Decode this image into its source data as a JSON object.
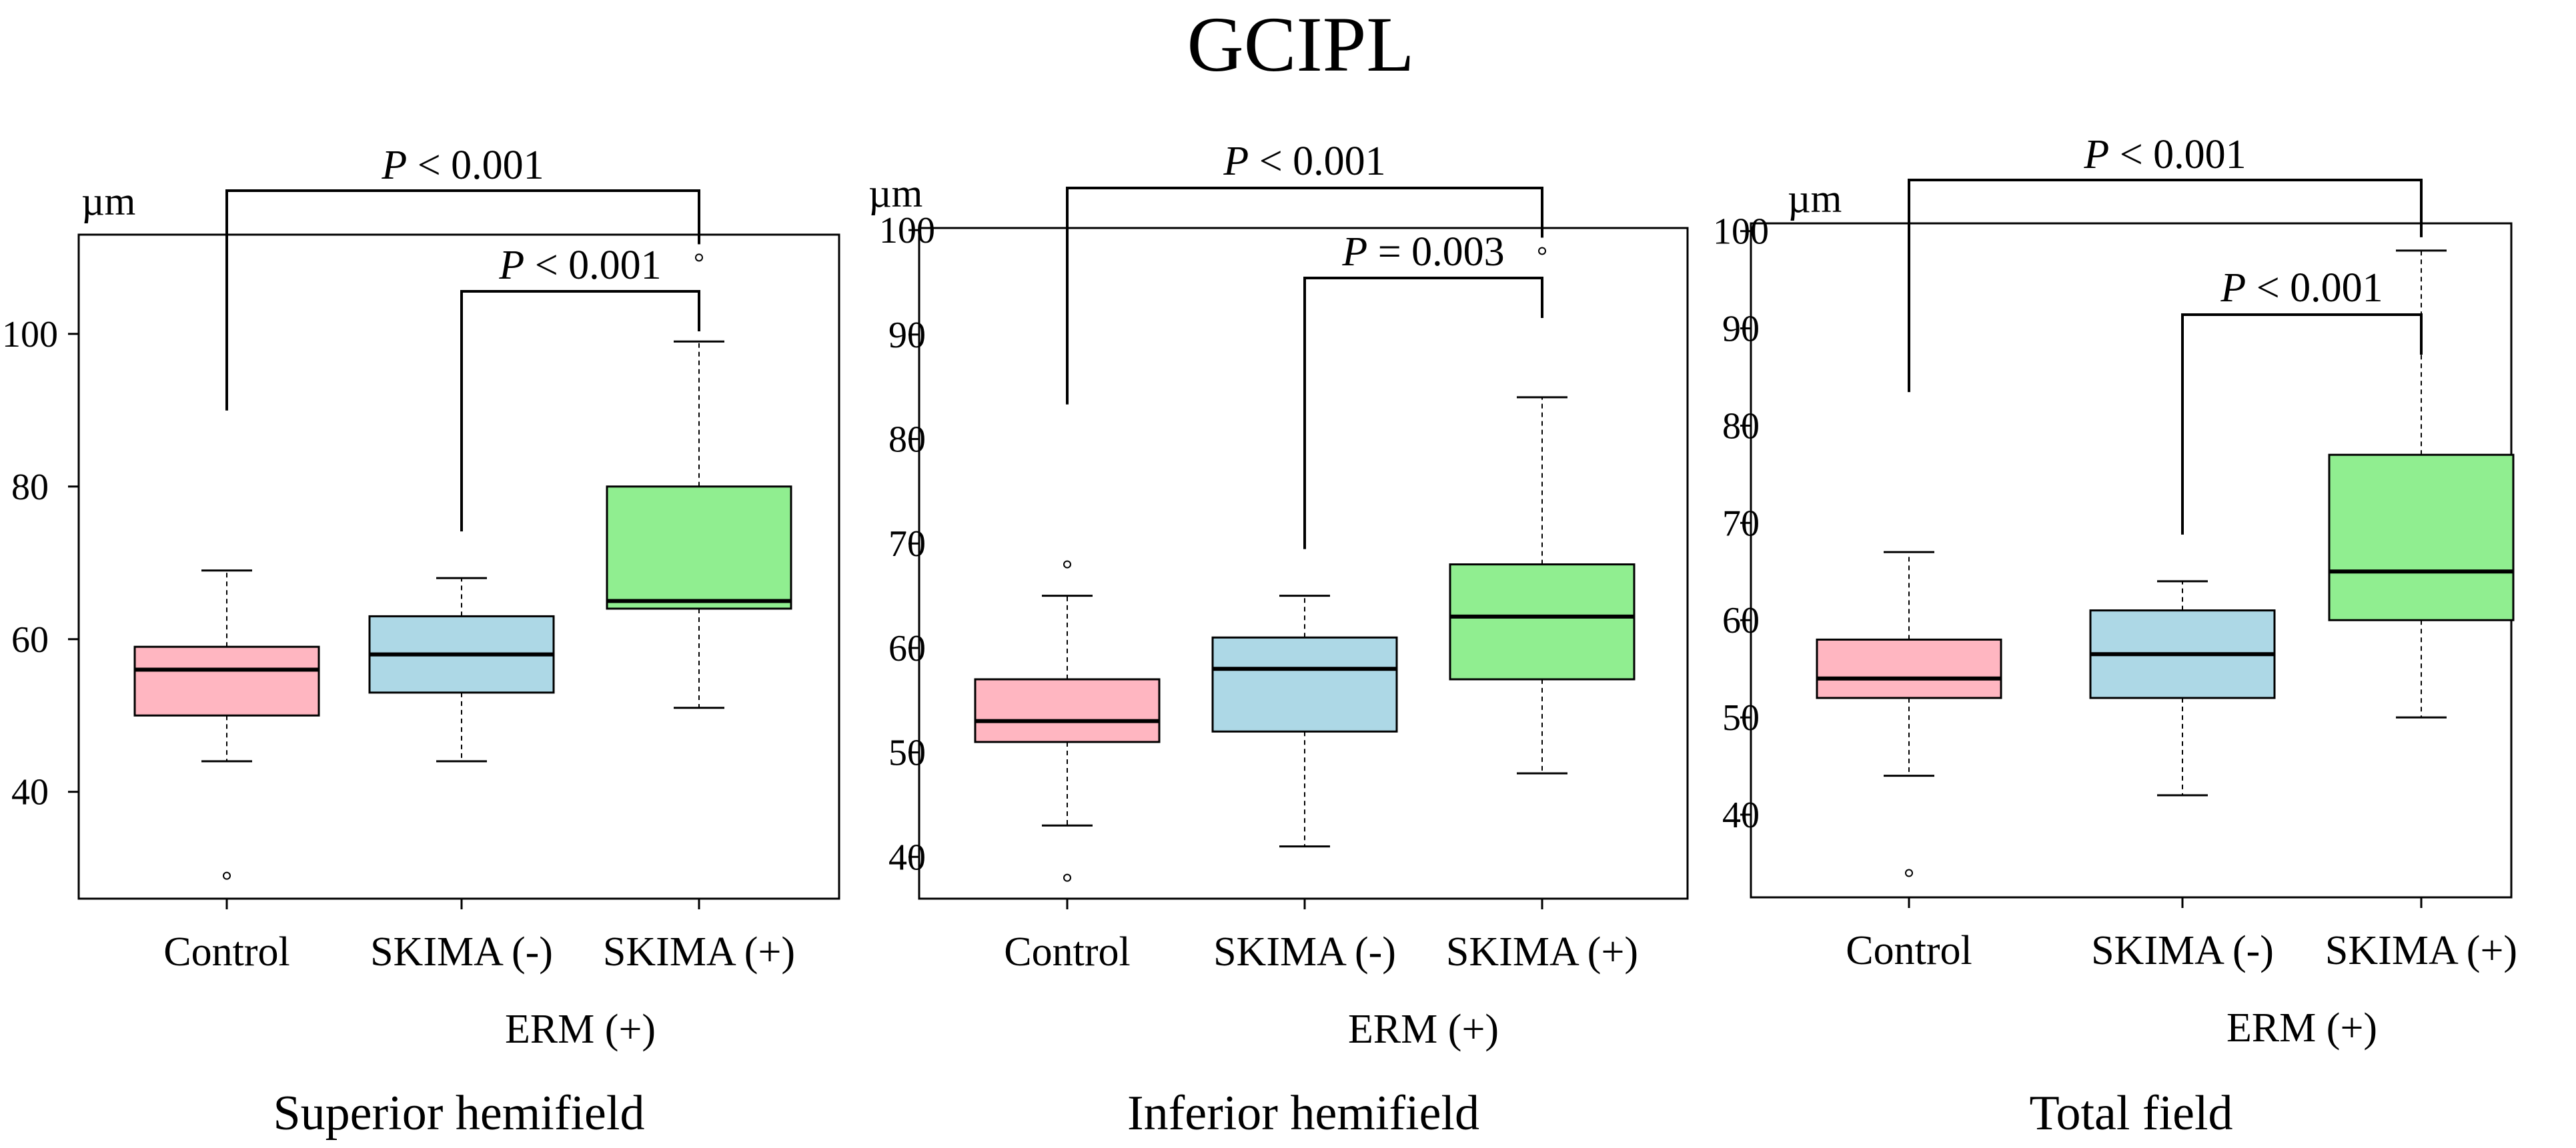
{
  "figure_title": "GCIPL",
  "unit_label": "µm",
  "colors": {
    "control": "#ffb6c1",
    "skima_neg": "#add8e6",
    "skima_pos": "#90ee90",
    "line": "#000000"
  },
  "chart_data": [
    {
      "type": "box",
      "caption": "Superior hemifield",
      "ylabel": "µm",
      "ylim": [
        26,
        113
      ],
      "yticks": [
        "40",
        "60",
        "80",
        "100"
      ],
      "categories": [
        "Control",
        "SKIMA (-)",
        "SKIMA (+)"
      ],
      "group_label": "ERM (+)",
      "boxes": [
        {
          "name": "Control",
          "min": 44,
          "q1": 50,
          "median": 56,
          "q3": 59,
          "max": 69,
          "outliers": [
            29
          ]
        },
        {
          "name": "SKIMA (-)",
          "min": 44,
          "q1": 53,
          "median": 58,
          "q3": 63,
          "max": 68,
          "outliers": []
        },
        {
          "name": "SKIMA (+)",
          "min": 51,
          "q1": 64,
          "median": 65,
          "q3": 80,
          "max": 99,
          "outliers": [
            110
          ]
        }
      ],
      "comparisons": [
        {
          "groups": [
            "Control",
            "SKIMA (+)"
          ],
          "p_symbol": "P",
          "p_text": " < 0.001"
        },
        {
          "groups": [
            "SKIMA (-)",
            "SKIMA (+)"
          ],
          "p_symbol": "P",
          "p_text": " < 0.001"
        }
      ]
    },
    {
      "type": "box",
      "caption": "Inferior  hemifield",
      "ylabel": "µm",
      "ylim": [
        36,
        100.2
      ],
      "yticks": [
        "40",
        "50",
        "60",
        "70",
        "80",
        "90",
        "100"
      ],
      "categories": [
        "Control",
        "SKIMA (-)",
        "SKIMA (+)"
      ],
      "group_label": "ERM (+)",
      "boxes": [
        {
          "name": "Control",
          "min": 43,
          "q1": 51,
          "median": 53,
          "q3": 57,
          "max": 65,
          "outliers": [
            68,
            38
          ]
        },
        {
          "name": "SKIMA (-)",
          "min": 41,
          "q1": 52,
          "median": 58,
          "q3": 61,
          "max": 65,
          "outliers": []
        },
        {
          "name": "SKIMA (+)",
          "min": 48,
          "q1": 57,
          "median": 63,
          "q3": 68,
          "max": 84,
          "outliers": [
            98
          ]
        }
      ],
      "comparisons": [
        {
          "groups": [
            "Control",
            "SKIMA (+)"
          ],
          "p_symbol": "P",
          "p_text": " < 0.001"
        },
        {
          "groups": [
            "SKIMA (-)",
            "SKIMA (+)"
          ],
          "p_symbol": "P",
          "p_text": " = 0.003"
        }
      ]
    },
    {
      "type": "box",
      "caption": "Total field",
      "ylabel": "µm",
      "ylim": [
        31.5,
        100.8
      ],
      "yticks": [
        "40",
        "50",
        "60",
        "70",
        "80",
        "90",
        "100"
      ],
      "categories": [
        "Control",
        "SKIMA (-)",
        "SKIMA (+)"
      ],
      "group_label": "ERM (+)",
      "boxes": [
        {
          "name": "Control",
          "min": 44,
          "q1": 52,
          "median": 54,
          "q3": 58,
          "max": 67,
          "outliers": [
            34
          ]
        },
        {
          "name": "SKIMA (-)",
          "min": 42,
          "q1": 52,
          "median": 56.5,
          "q3": 61,
          "max": 64,
          "outliers": []
        },
        {
          "name": "SKIMA (+)",
          "min": 50,
          "q1": 60,
          "median": 65,
          "q3": 77,
          "max": 98,
          "outliers": []
        }
      ],
      "comparisons": [
        {
          "groups": [
            "Control",
            "SKIMA (+)"
          ],
          "p_symbol": "P",
          "p_text": " < 0.001"
        },
        {
          "groups": [
            "SKIMA (-)",
            "SKIMA (+)"
          ],
          "p_symbol": "P",
          "p_text": " < 0.001"
        }
      ]
    }
  ]
}
